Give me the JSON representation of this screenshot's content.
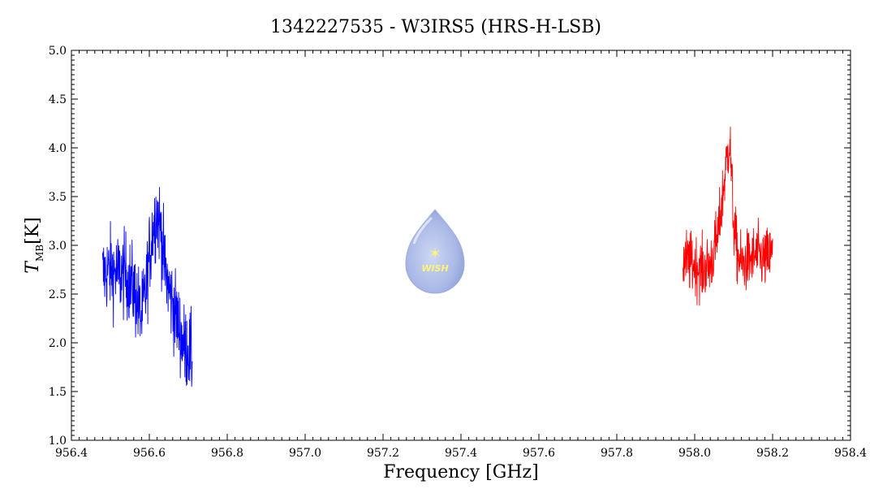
{
  "chart_data": {
    "type": "line",
    "title": "1342227535 - W3IRS5 (HRS-H-LSB)",
    "xlabel": "Frequency [GHz]",
    "ylabel_main": "T",
    "ylabel_sub": "MB",
    "ylabel_unit": "[K]",
    "xlim": [
      956.4,
      958.4
    ],
    "ylim": [
      1.0,
      5.0
    ],
    "xticks": [
      "956.4",
      "956.6",
      "956.8",
      "957.0",
      "957.2",
      "957.4",
      "957.6",
      "957.8",
      "958.0",
      "958.2",
      "958.4"
    ],
    "yticks": [
      "1.0",
      "1.5",
      "2.0",
      "2.5",
      "3.0",
      "3.5",
      "4.0",
      "4.5",
      "5.0"
    ],
    "grid": false,
    "series": [
      {
        "color": "#0000ff",
        "x": [
          956.48,
          956.5,
          956.52,
          956.54,
          956.56,
          956.57,
          956.58,
          956.59,
          956.6,
          956.61,
          956.62,
          956.63,
          956.64,
          956.65,
          956.66,
          956.67,
          956.68,
          956.69,
          956.7,
          956.71
        ],
        "y": [
          2.7,
          2.75,
          2.7,
          2.7,
          2.55,
          2.4,
          2.25,
          2.5,
          2.9,
          3.2,
          3.35,
          3.15,
          2.75,
          2.55,
          2.4,
          2.25,
          2.1,
          1.95,
          1.95,
          1.8
        ]
      },
      {
        "color": "#ff0000",
        "x": [
          957.97,
          958.0,
          958.02,
          958.04,
          958.05,
          958.06,
          958.07,
          958.08,
          958.09,
          958.1,
          958.11,
          958.12,
          958.14,
          958.16,
          958.18,
          958.2
        ],
        "y": [
          2.85,
          2.8,
          2.75,
          2.8,
          2.95,
          3.1,
          3.45,
          3.8,
          4.1,
          3.2,
          2.9,
          2.8,
          2.85,
          2.9,
          2.85,
          2.9
        ]
      }
    ]
  },
  "logo": {
    "text": "WISH"
  }
}
